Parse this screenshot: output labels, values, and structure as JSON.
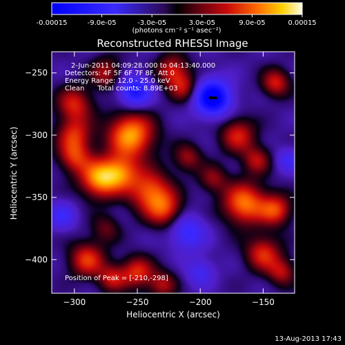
{
  "colorbar": {
    "tick_labels": [
      "-0.00015",
      "-9.0e-05",
      "-3.0e-05",
      "3.0e-05",
      "9.0e-05",
      "0.00015"
    ],
    "tick_values": [
      -0.00015,
      -9e-05,
      -3e-05,
      3e-05,
      9e-05,
      0.00015
    ],
    "range": [
      -0.00015,
      0.00015
    ],
    "unit_label": "(photons cm⁻² s⁻¹ asec⁻²)"
  },
  "timestamp": "13-Aug-2013 17:43",
  "chart_data": {
    "type": "heatmap",
    "title": "Reconstructed RHESSI Image",
    "xlabel": "Heliocentric X (arcsec)",
    "ylabel": "Heliocentric Y (arcsec)",
    "xlim": [
      -318,
      -125
    ],
    "ylim": [
      -427,
      -233
    ],
    "x_ticks": [
      -300,
      -250,
      -200,
      -150
    ],
    "y_ticks": [
      -250,
      -300,
      -350,
      -400
    ],
    "x_tick_labels": [
      "−300",
      "−250",
      "−200",
      "−150"
    ],
    "y_tick_labels": [
      "−250",
      "−300",
      "−350",
      "−400"
    ],
    "annotations": [
      "2-Jun-2011 04:09:28.000 to 04:13:40.000",
      "Detectors: 4F 5F 6F 7F 8F, Att 0",
      "Energy Range: 12.0 - 25.0 keV",
      "Clean      Total counts: 8.89E+03"
    ],
    "peak_label": "Position of Peak = [-210,-298]",
    "peak_position": [
      -210,
      -298
    ],
    "sources": [
      {
        "x": -255,
        "y": -300,
        "sigma": 13,
        "value": 0.00013
      },
      {
        "x": -280,
        "y": -335,
        "sigma": 11,
        "value": 0.000125
      },
      {
        "x": -263,
        "y": -330,
        "sigma": 10,
        "value": 9e-05
      },
      {
        "x": -240,
        "y": -345,
        "sigma": 12,
        "value": 0.0001
      },
      {
        "x": -228,
        "y": -360,
        "sigma": 10,
        "value": 8e-05
      },
      {
        "x": -300,
        "y": -275,
        "sigma": 10,
        "value": 8e-05
      },
      {
        "x": -300,
        "y": -300,
        "sigma": 10,
        "value": 8e-05
      },
      {
        "x": -300,
        "y": -318,
        "sigma": 9,
        "value": 7.5e-05
      },
      {
        "x": -275,
        "y": -250,
        "sigma": 9,
        "value": 6.5e-05
      },
      {
        "x": -222,
        "y": -248,
        "sigma": 9,
        "value": 8e-05
      },
      {
        "x": -213,
        "y": -262,
        "sigma": 8,
        "value": 6.5e-05
      },
      {
        "x": -170,
        "y": -300,
        "sigma": 10,
        "value": 8e-05
      },
      {
        "x": -140,
        "y": -258,
        "sigma": 8,
        "value": 8e-05
      },
      {
        "x": -155,
        "y": -320,
        "sigma": 8,
        "value": 6.5e-05
      },
      {
        "x": -165,
        "y": -355,
        "sigma": 12,
        "value": 0.000115
      },
      {
        "x": -140,
        "y": -360,
        "sigma": 9,
        "value": 9e-05
      },
      {
        "x": -150,
        "y": -395,
        "sigma": 10,
        "value": 8.5e-05
      },
      {
        "x": -135,
        "y": -410,
        "sigma": 8,
        "value": 6.5e-05
      },
      {
        "x": -290,
        "y": -400,
        "sigma": 10,
        "value": 9e-05
      },
      {
        "x": -270,
        "y": -415,
        "sigma": 8,
        "value": 7e-05
      },
      {
        "x": -250,
        "y": -410,
        "sigma": 9,
        "value": 8.5e-05
      },
      {
        "x": -230,
        "y": -420,
        "sigma": 8,
        "value": 6.5e-05
      },
      {
        "x": -210,
        "y": -318,
        "sigma": 8,
        "value": 6e-05
      },
      {
        "x": -190,
        "y": -335,
        "sigma": 8,
        "value": 5.5e-05
      },
      {
        "x": -275,
        "y": -375,
        "sigma": 8,
        "value": 4.5e-05
      },
      {
        "x": -190,
        "y": -270,
        "sigma": 10,
        "value": -0.000145
      },
      {
        "x": -252,
        "y": -265,
        "sigma": 9,
        "value": -0.0001
      },
      {
        "x": -210,
        "y": -378,
        "sigma": 10,
        "value": -7e-05
      },
      {
        "x": -310,
        "y": -365,
        "sigma": 8,
        "value": -5.5e-05
      },
      {
        "x": -130,
        "y": -320,
        "sigma": 7,
        "value": -5e-05
      },
      {
        "x": -200,
        "y": -410,
        "sigma": 8,
        "value": -5e-05
      }
    ],
    "colors": {
      "negative_min": "#1a1aff",
      "zero": "#2a0a55",
      "positive_mid": "#d81010",
      "positive_max": "#fffbe0"
    }
  }
}
